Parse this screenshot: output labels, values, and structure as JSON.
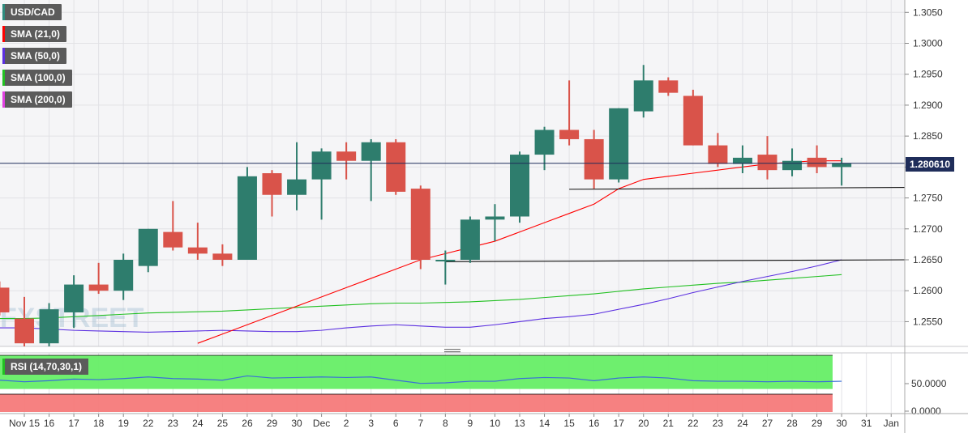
{
  "legend": [
    {
      "label": "USD/CAD",
      "color": "#2e8b7e"
    },
    {
      "label": "SMA (21,0)",
      "color": "#ff0000"
    },
    {
      "label": "SMA (50,0)",
      "color": "#5b2fe0"
    },
    {
      "label": "SMA (100,0)",
      "color": "#22c022"
    },
    {
      "label": "SMA (200,0)",
      "color": "#e040e0"
    }
  ],
  "rsi_label": "RSI (14,70,30,1)",
  "price_tag": "1.280610",
  "watermark": "FXSTREET",
  "colors": {
    "up": "#2e7d6d",
    "down": "#d9534a",
    "sma21": "#ff0000",
    "sma50": "#5b2fe0",
    "sma100": "#22c022",
    "rsi_line": "#3a6fd8",
    "rsi_over": "#66ee66",
    "rsi_under": "#f57a7a",
    "price_line": "#1f2d5a"
  },
  "chart_data": {
    "type": "candlestick",
    "title": "",
    "x_ticks": [
      "Nov 15",
      "16",
      "17",
      "18",
      "19",
      "22",
      "23",
      "24",
      "25",
      "26",
      "29",
      "30",
      "Dec",
      "2",
      "3",
      "6",
      "7",
      "8",
      "9",
      "10",
      "13",
      "14",
      "15",
      "16",
      "17",
      "20",
      "21",
      "22",
      "23",
      "24",
      "27",
      "28",
      "29",
      "30",
      "31",
      "Jan"
    ],
    "y_ticks": [
      "1.2550",
      "1.2600",
      "1.2650",
      "1.2700",
      "1.2750",
      "1.2800",
      "1.2850",
      "1.2900",
      "1.2950",
      "1.3000",
      "1.3050"
    ],
    "ylim": [
      1.251,
      1.307
    ],
    "rsi_ticks": [
      "50.0000",
      "0.0000"
    ],
    "current_price": 1.28061,
    "candles": [
      {
        "d": "Nov 12",
        "o": 1.2605,
        "h": 1.2615,
        "l": 1.256,
        "c": 1.2565
      },
      {
        "d": "Nov 15",
        "o": 1.2555,
        "h": 1.259,
        "l": 1.251,
        "c": 1.2515
      },
      {
        "d": "Nov 16",
        "o": 1.2515,
        "h": 1.258,
        "l": 1.251,
        "c": 1.257
      },
      {
        "d": "Nov 17",
        "o": 1.2565,
        "h": 1.2625,
        "l": 1.254,
        "c": 1.261
      },
      {
        "d": "Nov 18",
        "o": 1.261,
        "h": 1.2645,
        "l": 1.2595,
        "c": 1.26
      },
      {
        "d": "Nov 19",
        "o": 1.26,
        "h": 1.266,
        "l": 1.2585,
        "c": 1.265
      },
      {
        "d": "Nov 22",
        "o": 1.264,
        "h": 1.27,
        "l": 1.263,
        "c": 1.27
      },
      {
        "d": "Nov 23",
        "o": 1.2695,
        "h": 1.2745,
        "l": 1.2665,
        "c": 1.267
      },
      {
        "d": "Nov 24",
        "o": 1.267,
        "h": 1.271,
        "l": 1.265,
        "c": 1.266
      },
      {
        "d": "Nov 25",
        "o": 1.266,
        "h": 1.2675,
        "l": 1.264,
        "c": 1.265
      },
      {
        "d": "Nov 26",
        "o": 1.265,
        "h": 1.28,
        "l": 1.265,
        "c": 1.2785
      },
      {
        "d": "Nov 29",
        "o": 1.279,
        "h": 1.2795,
        "l": 1.272,
        "c": 1.2755
      },
      {
        "d": "Nov 30",
        "o": 1.2755,
        "h": 1.284,
        "l": 1.273,
        "c": 1.278
      },
      {
        "d": "Dec 1",
        "o": 1.278,
        "h": 1.283,
        "l": 1.2715,
        "c": 1.2825
      },
      {
        "d": "Dec 2",
        "o": 1.2825,
        "h": 1.284,
        "l": 1.278,
        "c": 1.281
      },
      {
        "d": "Dec 3",
        "o": 1.281,
        "h": 1.2845,
        "l": 1.2745,
        "c": 1.284
      },
      {
        "d": "Dec 6",
        "o": 1.284,
        "h": 1.2845,
        "l": 1.2755,
        "c": 1.276
      },
      {
        "d": "Dec 7",
        "o": 1.2765,
        "h": 1.277,
        "l": 1.2635,
        "c": 1.265
      },
      {
        "d": "Dec 8",
        "o": 1.265,
        "h": 1.2665,
        "l": 1.261,
        "c": 1.265
      },
      {
        "d": "Dec 9",
        "o": 1.265,
        "h": 1.272,
        "l": 1.2645,
        "c": 1.2715
      },
      {
        "d": "Dec 10",
        "o": 1.2715,
        "h": 1.274,
        "l": 1.268,
        "c": 1.272
      },
      {
        "d": "Dec 13",
        "o": 1.272,
        "h": 1.2825,
        "l": 1.271,
        "c": 1.282
      },
      {
        "d": "Dec 14",
        "o": 1.282,
        "h": 1.2865,
        "l": 1.2795,
        "c": 1.286
      },
      {
        "d": "Dec 15",
        "o": 1.286,
        "h": 1.294,
        "l": 1.2835,
        "c": 1.2845
      },
      {
        "d": "Dec 16",
        "o": 1.2845,
        "h": 1.286,
        "l": 1.2765,
        "c": 1.278
      },
      {
        "d": "Dec 17",
        "o": 1.278,
        "h": 1.2895,
        "l": 1.2775,
        "c": 1.2895
      },
      {
        "d": "Dec 20",
        "o": 1.289,
        "h": 1.2965,
        "l": 1.288,
        "c": 1.294
      },
      {
        "d": "Dec 21",
        "o": 1.294,
        "h": 1.2945,
        "l": 1.2915,
        "c": 1.292
      },
      {
        "d": "Dec 22",
        "o": 1.2915,
        "h": 1.2925,
        "l": 1.2835,
        "c": 1.2835
      },
      {
        "d": "Dec 23",
        "o": 1.2835,
        "h": 1.2855,
        "l": 1.28,
        "c": 1.2805
      },
      {
        "d": "Dec 24",
        "o": 1.2805,
        "h": 1.2835,
        "l": 1.279,
        "c": 1.2815
      },
      {
        "d": "Dec 27",
        "o": 1.282,
        "h": 1.285,
        "l": 1.278,
        "c": 1.2795
      },
      {
        "d": "Dec 28",
        "o": 1.2795,
        "h": 1.283,
        "l": 1.2785,
        "c": 1.281
      },
      {
        "d": "Dec 29",
        "o": 1.2815,
        "h": 1.2835,
        "l": 1.279,
        "c": 1.28
      },
      {
        "d": "Dec 30",
        "o": 1.28,
        "h": 1.2815,
        "l": 1.277,
        "c": 1.2806
      }
    ],
    "sma21": [
      null,
      null,
      null,
      null,
      null,
      null,
      null,
      null,
      1.2515,
      1.253,
      1.2545,
      1.256,
      1.2575,
      1.259,
      1.2605,
      1.262,
      1.2635,
      1.265,
      1.266,
      1.267,
      1.268,
      1.2695,
      1.271,
      1.2725,
      1.274,
      1.2765,
      1.278,
      1.2785,
      1.279,
      1.2795,
      1.28,
      1.2805,
      1.2808,
      1.281,
      1.281
    ],
    "sma50": [
      1.254,
      1.254,
      1.2538,
      1.2536,
      1.2535,
      1.2534,
      1.2533,
      1.2534,
      1.2535,
      1.2536,
      1.2535,
      1.2534,
      1.2534,
      1.2536,
      1.254,
      1.2543,
      1.2545,
      1.2543,
      1.2541,
      1.2541,
      1.2545,
      1.255,
      1.2555,
      1.2558,
      1.2562,
      1.257,
      1.2578,
      1.2587,
      1.2597,
      1.2606,
      1.2615,
      1.2623,
      1.2631,
      1.264,
      1.265
    ],
    "sma100": [
      1.2555,
      1.2555,
      1.2556,
      1.2558,
      1.256,
      1.2562,
      1.2564,
      1.2565,
      1.2566,
      1.2567,
      1.2569,
      1.2571,
      1.2573,
      1.2575,
      1.2577,
      1.2579,
      1.258,
      1.258,
      1.2581,
      1.2582,
      1.2584,
      1.2586,
      1.2589,
      1.2592,
      1.2595,
      1.2599,
      1.2603,
      1.2606,
      1.2609,
      1.2612,
      1.2614,
      1.2617,
      1.262,
      1.2623,
      1.2626
    ],
    "rsi": [
      58,
      55,
      57,
      60,
      59,
      61,
      64,
      61,
      60,
      58,
      66,
      62,
      63,
      64,
      63,
      64,
      58,
      52,
      53,
      56,
      56,
      61,
      63,
      62,
      57,
      62,
      64,
      62,
      57,
      56,
      56,
      55,
      56,
      55,
      56
    ],
    "trendlines": [
      {
        "from": {
          "d": "Dec 15",
          "v": 1.2764
        },
        "to": {
          "d": "Jan+",
          "v": 1.2767
        }
      },
      {
        "from": {
          "d": "Dec 8",
          "v": 1.2647
        },
        "to": {
          "d": "Jan+",
          "v": 1.265
        }
      }
    ]
  }
}
